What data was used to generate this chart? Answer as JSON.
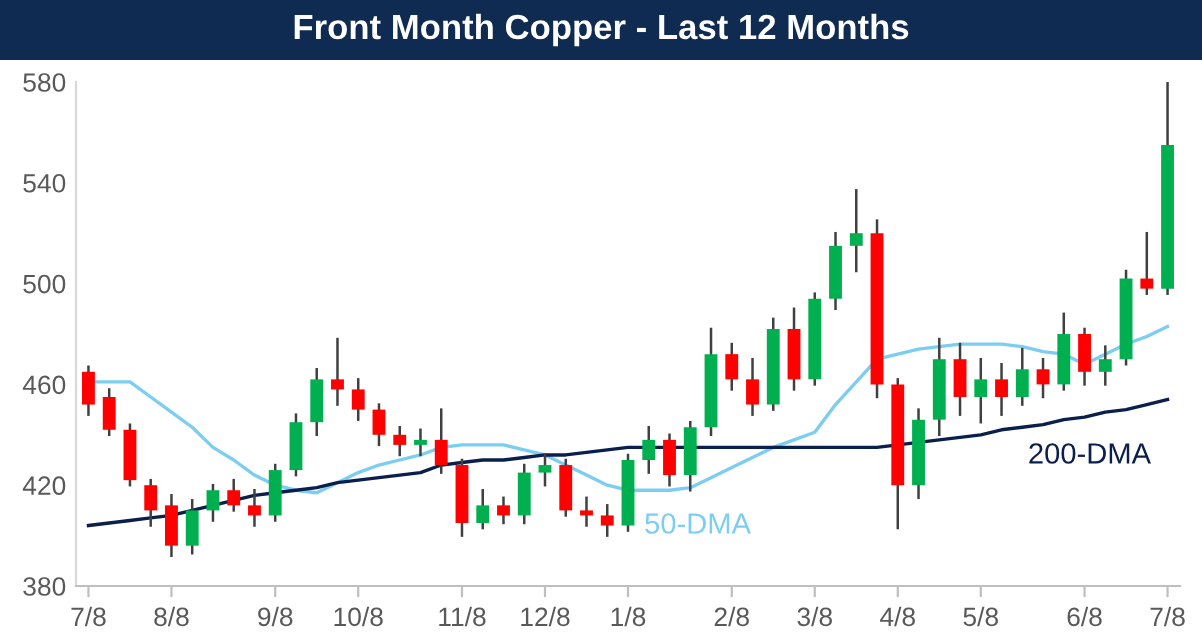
{
  "chart_data": {
    "type": "candlestick",
    "title": "Front Month Copper - Last 12 Months",
    "categories": [
      "7/8",
      null,
      null,
      null,
      "8/8",
      null,
      null,
      null,
      null,
      "9/8",
      null,
      null,
      null,
      "10/8",
      null,
      null,
      null,
      null,
      "11/8",
      null,
      null,
      null,
      "12/8",
      null,
      null,
      null,
      "1/8",
      null,
      null,
      null,
      null,
      "2/8",
      null,
      null,
      null,
      "3/8",
      null,
      null,
      null,
      "4/8",
      null,
      null,
      null,
      "5/8",
      null,
      null,
      null,
      null,
      "6/8",
      null,
      null,
      null,
      "7/8"
    ],
    "ohlc": [
      [
        465,
        467,
        448,
        452
      ],
      [
        455,
        458,
        440,
        442
      ],
      [
        442,
        444,
        420,
        422
      ],
      [
        420,
        422,
        404,
        410
      ],
      [
        412,
        416,
        392,
        396
      ],
      [
        396,
        414,
        393,
        410
      ],
      [
        410,
        420,
        406,
        418
      ],
      [
        418,
        422,
        410,
        412
      ],
      [
        412,
        418,
        404,
        408
      ],
      [
        408,
        428,
        406,
        426
      ],
      [
        426,
        448,
        424,
        445
      ],
      [
        445,
        466,
        440,
        462
      ],
      [
        462,
        478,
        452,
        458
      ],
      [
        458,
        462,
        446,
        450
      ],
      [
        450,
        452,
        436,
        440
      ],
      [
        440,
        443,
        432,
        436
      ],
      [
        436,
        442,
        432,
        438
      ],
      [
        438,
        450,
        425,
        428
      ],
      [
        428,
        430,
        400,
        405
      ],
      [
        405,
        418,
        403,
        412
      ],
      [
        412,
        415,
        405,
        408
      ],
      [
        408,
        428,
        405,
        425
      ],
      [
        425,
        432,
        420,
        428
      ],
      [
        428,
        430,
        408,
        410
      ],
      [
        410,
        415,
        404,
        408
      ],
      [
        408,
        412,
        400,
        404
      ],
      [
        404,
        432,
        402,
        430
      ],
      [
        430,
        443,
        425,
        438
      ],
      [
        438,
        440,
        420,
        424
      ],
      [
        424,
        445,
        418,
        443
      ],
      [
        443,
        482,
        440,
        472
      ],
      [
        472,
        476,
        458,
        462
      ],
      [
        462,
        470,
        448,
        452
      ],
      [
        452,
        486,
        450,
        482
      ],
      [
        482,
        490,
        458,
        462
      ],
      [
        462,
        496,
        460,
        494
      ],
      [
        494,
        520,
        490,
        515
      ],
      [
        515,
        537,
        505,
        520
      ],
      [
        520,
        525,
        455,
        460
      ],
      [
        460,
        462,
        403,
        420
      ],
      [
        420,
        450,
        415,
        446
      ],
      [
        446,
        478,
        440,
        470
      ],
      [
        470,
        476,
        448,
        455
      ],
      [
        455,
        470,
        445,
        462
      ],
      [
        462,
        468,
        448,
        455
      ],
      [
        455,
        474,
        452,
        466
      ],
      [
        466,
        470,
        455,
        460
      ],
      [
        460,
        488,
        458,
        480
      ],
      [
        480,
        482,
        460,
        465
      ],
      [
        465,
        475,
        460,
        470
      ],
      [
        470,
        505,
        468,
        502
      ],
      [
        502,
        520,
        496,
        498
      ],
      [
        498,
        580,
        496,
        555
      ]
    ],
    "colors": [
      "#ff0000",
      "#ff0000",
      "#ff0000",
      "#ff0000",
      "#ff0000",
      "#00b050",
      "#00b050",
      "#ff0000",
      "#ff0000",
      "#00b050",
      "#00b050",
      "#00b050",
      "#ff0000",
      "#ff0000",
      "#ff0000",
      "#ff0000",
      "#00b050",
      "#ff0000",
      "#ff0000",
      "#00b050",
      "#ff0000",
      "#00b050",
      "#00b050",
      "#ff0000",
      "#ff0000",
      "#ff0000",
      "#00b050",
      "#00b050",
      "#ff0000",
      "#00b050",
      "#00b050",
      "#ff0000",
      "#ff0000",
      "#00b050",
      "#ff0000",
      "#00b050",
      "#00b050",
      "#00b050",
      "#ff0000",
      "#ff0000",
      "#00b050",
      "#00b050",
      "#ff0000",
      "#00b050",
      "#ff0000",
      "#00b050",
      "#ff0000",
      "#00b050",
      "#ff0000",
      "#00b050",
      "#00b050",
      "#ff0000",
      "#00b050"
    ],
    "series": [
      {
        "type": "line",
        "name": "50-DMA",
        "color": "#7ccdf2",
        "values": [
          461,
          461,
          461,
          455,
          449,
          443,
          435,
          430,
          424,
          420,
          418,
          417,
          421,
          425,
          428,
          430,
          432,
          435,
          436,
          436,
          436,
          434,
          432,
          428,
          424,
          420,
          418,
          418,
          418,
          419,
          423,
          427,
          431,
          435,
          438,
          441,
          452,
          461,
          470,
          472,
          474,
          475,
          476,
          476,
          476,
          475,
          473,
          472,
          468,
          472,
          476,
          479,
          483
        ]
      },
      {
        "type": "line",
        "name": "200-DMA",
        "color": "#0b1f4d",
        "values": [
          404,
          405,
          406,
          407,
          408,
          410,
          412,
          414,
          416,
          417,
          418,
          419,
          421,
          422,
          423,
          424,
          425,
          428,
          429,
          430,
          430,
          431,
          432,
          432,
          433,
          434,
          435,
          435,
          435,
          435,
          435,
          435,
          435,
          435,
          435,
          435,
          435,
          435,
          435,
          436,
          437,
          438,
          439,
          440,
          442,
          443,
          444,
          446,
          447,
          449,
          450,
          452,
          454
        ]
      }
    ],
    "ylim": [
      380,
      580
    ],
    "yticks": [
      380,
      420,
      460,
      500,
      540,
      580
    ],
    "grid": false,
    "legend": false
  }
}
